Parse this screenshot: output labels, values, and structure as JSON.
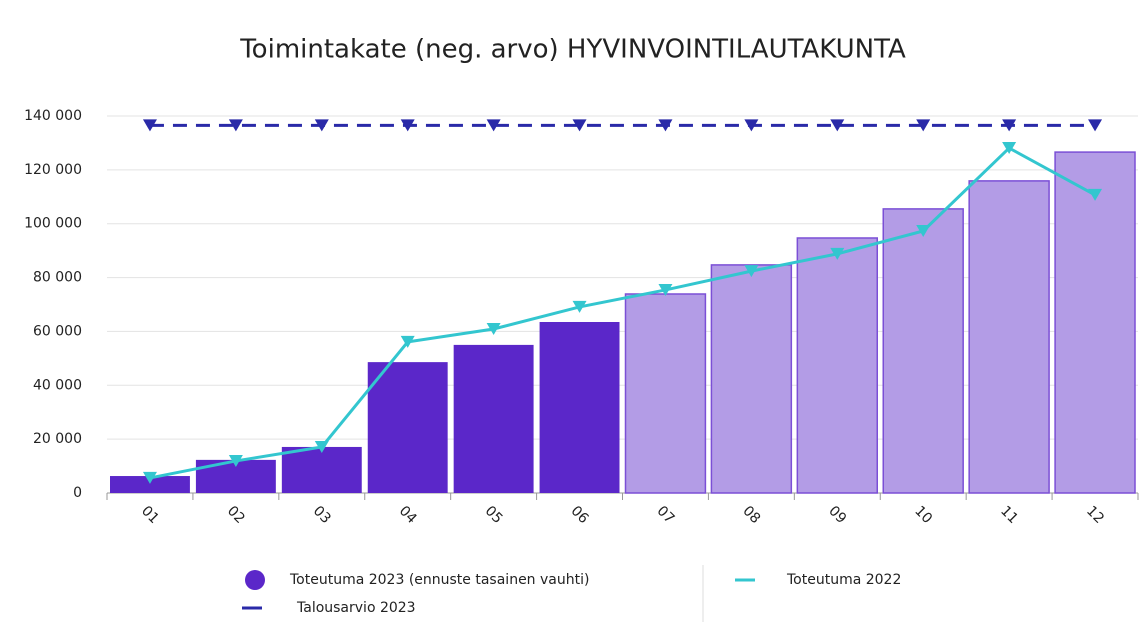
{
  "chart_data": {
    "type": "bar",
    "title": "Toimintakate (neg. arvo) HYVINVOINTILAUTAKUNTA",
    "categories": [
      "01",
      "02",
      "03",
      "04",
      "05",
      "06",
      "07",
      "08",
      "09",
      "10",
      "11",
      "12"
    ],
    "series": [
      {
        "name": "Toteutuma 2023 (ennuste tasainen vauhti)",
        "type": "bar",
        "color": "#5b27c9",
        "colors": [
          "#5b27c9",
          "#5b27c9",
          "#5b27c9",
          "#5b27c9",
          "#5b27c9",
          "#5b27c9",
          "#b39ce6",
          "#b39ce6",
          "#b39ce6",
          "#b39ce6",
          "#b39ce6",
          "#b39ce6"
        ],
        "values": [
          6300,
          12300,
          17100,
          48600,
          55000,
          63500,
          73900,
          84700,
          94700,
          105500,
          115900,
          126600
        ]
      },
      {
        "name": "Toteutuma 2022",
        "type": "line",
        "color": "#33c6cf",
        "values": [
          5600,
          11900,
          17100,
          56100,
          60900,
          69100,
          75400,
          82400,
          88800,
          97300,
          128100,
          110700
        ]
      },
      {
        "name": "Talousarvio 2023",
        "type": "line",
        "dashed": true,
        "color": "#2a2aa8",
        "values": [
          136500,
          136500,
          136500,
          136500,
          136500,
          136500,
          136500,
          136500,
          136500,
          136500,
          136500,
          136500
        ]
      }
    ],
    "ylim": [
      0,
      140000
    ],
    "yticks": [
      0,
      {
        "value": 20000,
        "label": "20 000"
      },
      {
        "value": 40000,
        "label": "40 000"
      },
      {
        "value": 60000,
        "label": "60 000"
      },
      {
        "value": 80000,
        "label": "80 000"
      },
      {
        "value": 100000,
        "label": "100 000"
      },
      {
        "value": 120000,
        "label": "120 000"
      },
      {
        "value": 140000,
        "label": "140 000"
      }
    ],
    "grid": true
  }
}
